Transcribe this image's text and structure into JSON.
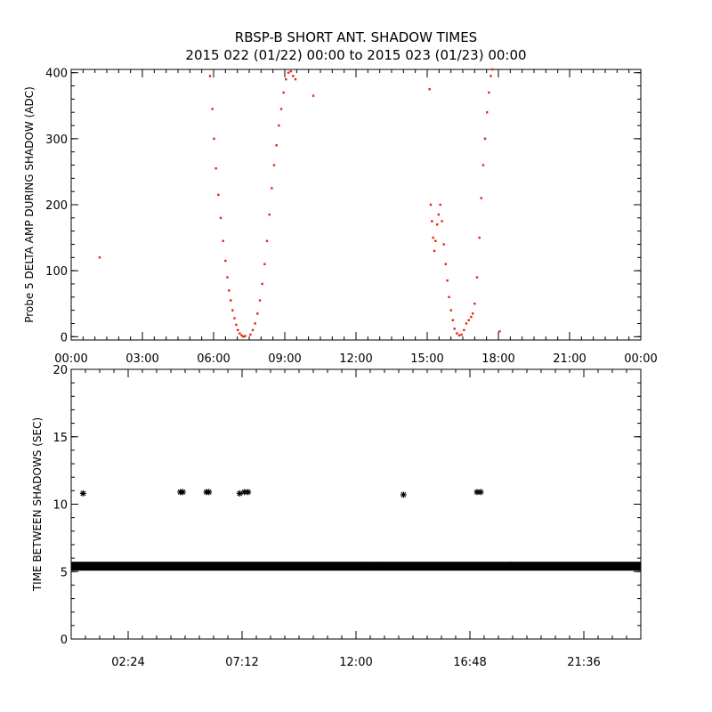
{
  "title": {
    "line1": "RBSP-B SHORT ANT. SHADOW TIMES",
    "line2": "2015 022 (01/22) 00:00 to 2015 023 (01/23) 00:00"
  },
  "colors": {
    "series_top": "#e8200c",
    "series_bottom": "#000000",
    "axes": "#000000"
  },
  "chart_data": [
    {
      "type": "scatter",
      "title": "",
      "xlabel": "",
      "ylabel": "Probe 5 DELTA AMP DURING SHADOW (ADC)",
      "x_unit": "hours",
      "xlim": [
        0,
        24
      ],
      "ylim": [
        -5,
        405
      ],
      "x_ticks": [
        {
          "value": 0,
          "label": "00:00"
        },
        {
          "value": 3,
          "label": "03:00"
        },
        {
          "value": 6,
          "label": "06:00"
        },
        {
          "value": 9,
          "label": "09:00"
        },
        {
          "value": 12,
          "label": "12:00"
        },
        {
          "value": 15,
          "label": "15:00"
        },
        {
          "value": 18,
          "label": "18:00"
        },
        {
          "value": 21,
          "label": "21:00"
        },
        {
          "value": 24,
          "label": "00:00"
        }
      ],
      "y_ticks": [
        {
          "value": 0,
          "label": "0"
        },
        {
          "value": 100,
          "label": "100"
        },
        {
          "value": 200,
          "label": "200"
        },
        {
          "value": 300,
          "label": "300"
        },
        {
          "value": 400,
          "label": "400"
        }
      ],
      "grid": false,
      "marker": "dot",
      "series": [
        {
          "x": [
            1.2,
            5.85,
            5.95,
            6.02,
            6.1,
            6.2,
            6.3,
            6.4,
            6.5,
            6.58,
            6.65,
            6.72,
            6.8,
            6.88,
            6.95,
            7.02,
            7.1,
            7.18,
            7.25,
            7.33,
            7.55,
            7.65,
            7.75,
            7.85,
            7.95,
            8.05,
            8.15,
            8.25,
            8.35,
            8.45,
            8.55,
            8.65,
            8.75,
            8.85,
            8.95,
            9.05,
            9.15,
            9.25,
            9.35,
            9.45,
            10.2,
            15.1,
            15.15,
            15.2,
            15.25,
            15.3,
            15.35,
            15.42,
            15.48,
            15.55,
            15.62,
            15.7,
            15.78,
            15.85,
            15.92,
            16.0,
            16.08,
            16.15,
            16.25,
            16.35,
            16.45,
            16.55,
            16.65,
            16.75,
            16.85,
            16.92,
            17.0,
            17.1,
            17.2,
            17.28,
            17.36,
            17.44,
            17.52,
            17.6,
            17.68,
            17.75,
            18.05
          ],
          "y": [
            120,
            395,
            345,
            300,
            255,
            215,
            180,
            145,
            115,
            90,
            70,
            55,
            40,
            28,
            18,
            10,
            5,
            2,
            0,
            1,
            3,
            10,
            20,
            35,
            55,
            80,
            110,
            145,
            185,
            225,
            260,
            290,
            320,
            345,
            370,
            390,
            400,
            402,
            395,
            390,
            365,
            375,
            200,
            175,
            150,
            130,
            145,
            170,
            185,
            200,
            175,
            140,
            110,
            85,
            60,
            40,
            25,
            12,
            5,
            2,
            3,
            10,
            20,
            25,
            30,
            35,
            50,
            90,
            150,
            210,
            260,
            300,
            340,
            370,
            395,
            405,
            8
          ]
        }
      ]
    },
    {
      "type": "scatter",
      "title": "",
      "xlabel": "",
      "ylabel": "TIME BETWEEN SHADOWS (SEC)",
      "x_unit": "hours",
      "xlim": [
        0,
        24
      ],
      "ylim": [
        0,
        20
      ],
      "x_ticks": [
        {
          "value": 2.4,
          "label": "02:24"
        },
        {
          "value": 7.2,
          "label": "07:12"
        },
        {
          "value": 12.0,
          "label": "12:00"
        },
        {
          "value": 16.8,
          "label": "16:48"
        },
        {
          "value": 21.6,
          "label": "21:36"
        }
      ],
      "y_ticks": [
        {
          "value": 0,
          "label": "0"
        },
        {
          "value": 5,
          "label": "5"
        },
        {
          "value": 10,
          "label": "10"
        },
        {
          "value": 15,
          "label": "15"
        },
        {
          "value": 20,
          "label": "20"
        }
      ],
      "grid": false,
      "marker": "asterisk",
      "baseline_band": {
        "x_range": [
          0,
          24
        ],
        "value": 5.4
      },
      "series": [
        {
          "x": [
            0.5,
            4.6,
            4.7,
            5.7,
            5.8,
            7.1,
            7.3,
            7.45,
            10.45,
            10.6,
            12.3,
            12.45,
            12.9,
            13.05,
            14.0,
            17.1,
            17.25,
            18.45,
            18.55,
            19.9,
            20.05,
            22.55,
            22.7
          ],
          "y": [
            10.8,
            10.9,
            10.9,
            10.9,
            10.9,
            10.8,
            10.9,
            10.9,
            5.5,
            5.5,
            5.5,
            5.5,
            5.5,
            5.5,
            10.7,
            10.9,
            10.9,
            5.5,
            5.5,
            5.5,
            5.5,
            5.5,
            5.5
          ]
        }
      ]
    }
  ]
}
